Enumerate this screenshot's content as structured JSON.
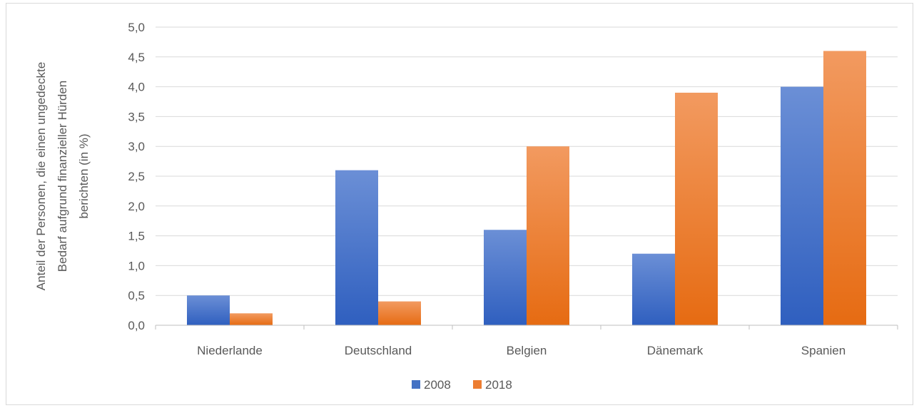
{
  "chart_data": {
    "type": "bar",
    "title": "",
    "ylabel_lines": [
      "Anteil der Personen, die einen ungedeckte",
      "Bedarf aufgrund finanzieller Hürden",
      "berichten (in %)"
    ],
    "xlabel": "",
    "categories": [
      "Niederlande",
      "Deutschland",
      "Belgien",
      "Dänemark",
      "Spanien"
    ],
    "series": [
      {
        "name": "2008",
        "values": [
          0.5,
          2.6,
          1.6,
          1.2,
          4.0
        ],
        "color": "#4472c4"
      },
      {
        "name": "2018",
        "values": [
          0.2,
          0.4,
          3.0,
          3.9,
          4.6
        ],
        "color": "#ed7d31"
      }
    ],
    "yticks": [
      "0,0",
      "0,5",
      "1,0",
      "1,5",
      "2,0",
      "2,5",
      "3,0",
      "3,5",
      "4,0",
      "4,5",
      "5,0"
    ],
    "ylim": [
      0,
      5
    ],
    "grid": true,
    "legend_position": "bottom"
  }
}
